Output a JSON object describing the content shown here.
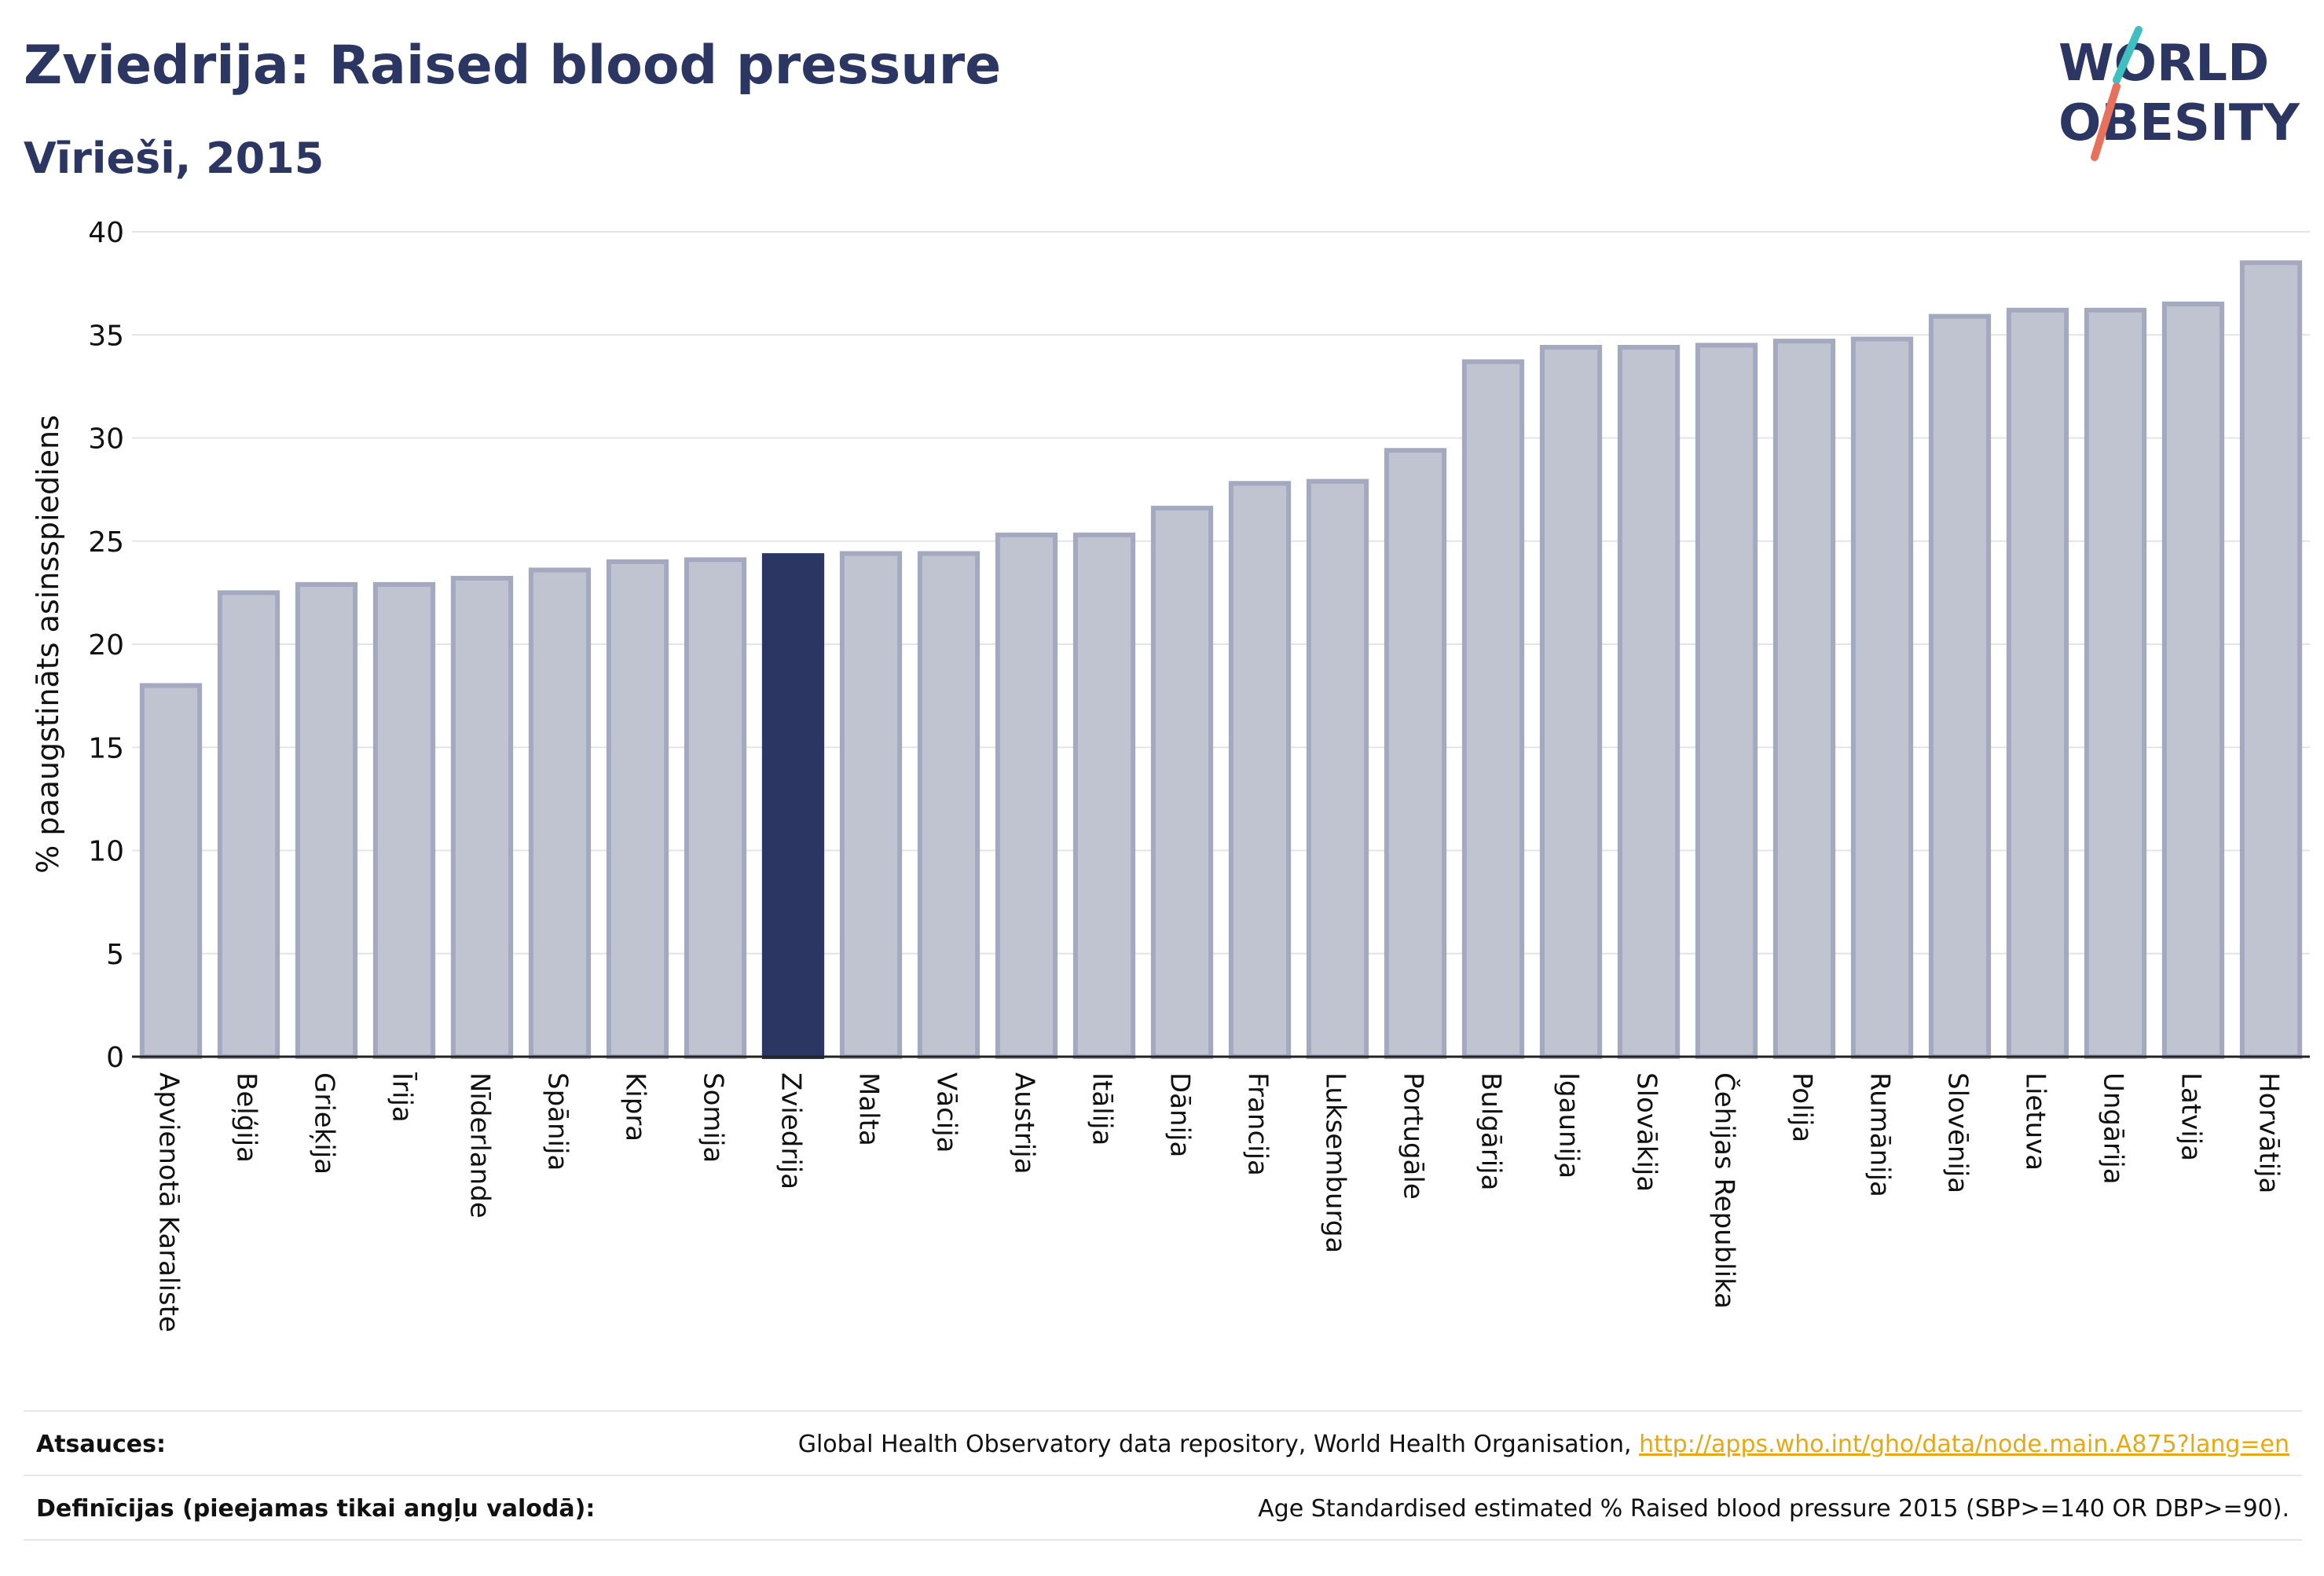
{
  "header": {
    "title": "Zviedrija: Raised blood pressure",
    "subtitle": "Vīrieši, 2015"
  },
  "logo": {
    "line1": "WORLD",
    "line2": "OBESITY"
  },
  "colors": {
    "highlight": "#2b3663",
    "bar_fill": "#c0c3d0",
    "bar_stroke": "#a4a9c0",
    "accent_teal": "#3fbfbf",
    "accent_coral": "#e8715e"
  },
  "chart_data": {
    "type": "bar",
    "ylabel": "% paaugstināts asinsspiediens",
    "ylim": [
      0,
      40
    ],
    "yticks": [
      0,
      5,
      10,
      15,
      20,
      25,
      30,
      35,
      40
    ],
    "grid": true,
    "highlight": "Zviedrija",
    "categories": [
      "Apvienotā Karaliste",
      "Beļģija",
      "Grieķija",
      "Īrija",
      "Nīderlande",
      "Spānija",
      "Kipra",
      "Somija",
      "Zviedrija",
      "Malta",
      "Vācija",
      "Austrija",
      "Itālija",
      "Dānija",
      "Francija",
      "Luksemburga",
      "Portugāle",
      "Bulgārija",
      "Igaunija",
      "Slovākija",
      "Čehijas Republika",
      "Polija",
      "Rumānija",
      "Slovēnija",
      "Lietuva",
      "Ungārija",
      "Latvija",
      "Horvātija"
    ],
    "values": [
      18.0,
      22.5,
      22.9,
      22.9,
      23.2,
      23.6,
      24.0,
      24.1,
      24.3,
      24.4,
      24.4,
      25.3,
      25.3,
      26.6,
      27.8,
      27.9,
      29.4,
      33.7,
      34.4,
      34.4,
      34.5,
      34.7,
      34.8,
      35.9,
      36.2,
      36.2,
      36.5,
      38.5
    ]
  },
  "footer": {
    "sources_label": "Atsauces:",
    "sources_text": "Global Health Observatory data repository, World Health Organisation,",
    "sources_link": "http://apps.who.int/gho/data/node.main.A875?lang=en",
    "definitions_label": "Definīcijas (pieejamas tikai angļu valodā):",
    "definitions_text": "Age Standardised estimated % Raised blood pressure 2015 (SBP>=140 OR DBP>=90)."
  }
}
